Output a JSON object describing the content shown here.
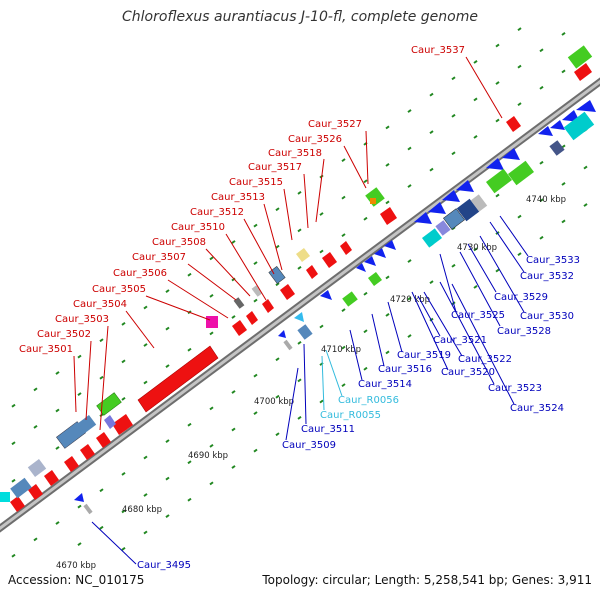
{
  "title": "Chloroflexus aurantiacus J-10-fl, complete genome",
  "footer": {
    "accession": "Accession: NC_010175",
    "summary": "Topology: circular; Length: 5,258,541 bp; Genes: 3,911"
  },
  "colors": {
    "plus_label": "#cc0000",
    "minus_label": "#0000bb",
    "rna_label": "#33bbdd",
    "backbone": "#888888",
    "tick": "#228822"
  },
  "scale_labels": [
    "4670 kbp",
    "4680 kbp",
    "4690 kbp",
    "4700 kbp",
    "4710 kbp",
    "4720 kbp",
    "4730 kbp",
    "4740 kbp"
  ],
  "plus_strand_labels": [
    "Caur_3501",
    "Caur_3502",
    "Caur_3503",
    "Caur_3504",
    "Caur_3505",
    "Caur_3506",
    "Caur_3507",
    "Caur_3508",
    "Caur_3510",
    "Caur_3512",
    "Caur_3513",
    "Caur_3515",
    "Caur_3517",
    "Caur_3518",
    "Caur_3526",
    "Caur_3527",
    "Caur_3537"
  ],
  "minus_strand_labels": [
    "Caur_3495",
    "Caur_3509",
    "Caur_3511",
    "Caur_3514",
    "Caur_3516",
    "Caur_3519",
    "Caur_3520",
    "Caur_3521",
    "Caur_3522",
    "Caur_3523",
    "Caur_3524",
    "Caur_3525",
    "Caur_3528",
    "Caur_3529",
    "Caur_3530",
    "Caur_3532",
    "Caur_3533"
  ],
  "rna_labels": [
    "Caur_R0055",
    "Caur_R0056"
  ]
}
